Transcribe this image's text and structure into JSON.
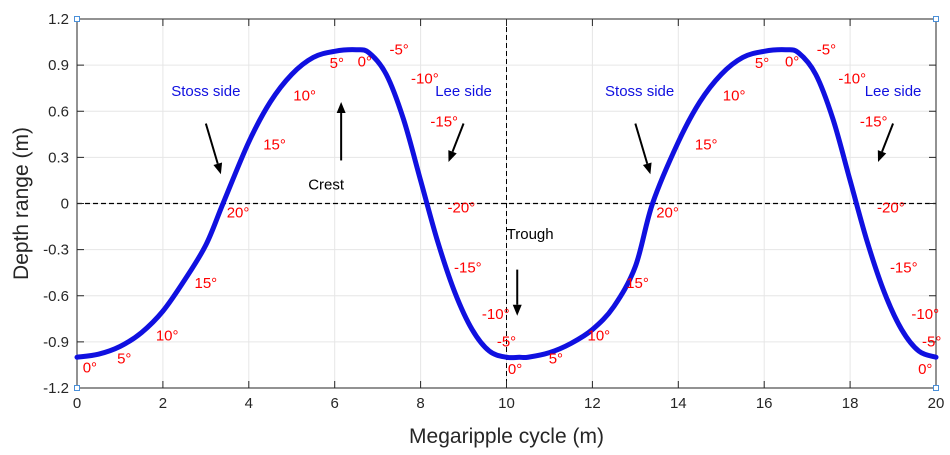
{
  "chart_data": {
    "type": "line",
    "xlabel": "Megaripple cycle (m)",
    "ylabel": "Depth range (m)",
    "xlim": [
      0,
      20
    ],
    "ylim": [
      -1.2,
      1.2
    ],
    "x_ticks": [
      "0",
      "2",
      "4",
      "6",
      "8",
      "10",
      "12",
      "14",
      "16",
      "18",
      "20"
    ],
    "y_ticks": [
      "-1.2",
      "-0.9",
      "-0.6",
      "-0.3",
      "0",
      "0.3",
      "0.6",
      "0.9",
      "1.2"
    ],
    "grid": true,
    "series": [
      {
        "color": "#1010e0",
        "x": [
          0,
          0.5,
          1,
          1.5,
          2,
          2.5,
          3,
          3.4,
          4,
          4.5,
          5,
          5.5,
          6,
          6.5,
          6.8,
          7.2,
          7.6,
          8.0,
          8.4,
          8.8,
          9.2,
          9.6,
          10.0,
          10.3,
          10.5,
          11,
          11.5,
          12,
          12.5,
          13,
          13.4,
          14,
          14.5,
          15,
          15.5,
          16,
          16.5,
          16.8,
          17.2,
          17.6,
          18.0,
          18.4,
          18.8,
          19.2,
          19.6,
          20.0
        ],
        "y": [
          -1.0,
          -0.98,
          -0.93,
          -0.84,
          -0.7,
          -0.5,
          -0.27,
          0.0,
          0.4,
          0.66,
          0.84,
          0.95,
          0.99,
          1.0,
          0.98,
          0.84,
          0.55,
          0.15,
          -0.25,
          -0.58,
          -0.82,
          -0.96,
          -1.0,
          -1.0,
          -1.0,
          -0.97,
          -0.91,
          -0.82,
          -0.67,
          -0.41,
          0.0,
          0.4,
          0.66,
          0.84,
          0.95,
          0.99,
          1.0,
          0.98,
          0.84,
          0.55,
          0.15,
          -0.25,
          -0.58,
          -0.82,
          -0.96,
          -1.0
        ]
      }
    ],
    "reference_lines": {
      "horizontal_y": 0,
      "vertical_x": 10,
      "color": "#000000",
      "style": "dashed"
    },
    "annotations": [
      {
        "text": "Stoss side",
        "x": 3.0,
        "y": 0.7,
        "color": "#1010e0"
      },
      {
        "text": "Lee side",
        "x": 9.0,
        "y": 0.7,
        "color": "#1010e0"
      },
      {
        "text": "Stoss side",
        "x": 13.1,
        "y": 0.7,
        "color": "#1010e0"
      },
      {
        "text": "Lee side",
        "x": 19.0,
        "y": 0.7,
        "color": "#1010e0"
      },
      {
        "text": "Crest",
        "x": 5.8,
        "y": 0.09,
        "color": "#000000"
      },
      {
        "text": "Trough",
        "x": 10.55,
        "y": -0.23,
        "color": "#000000"
      }
    ],
    "arrows": [
      {
        "from": [
          3.0,
          0.52
        ],
        "to": [
          3.35,
          0.19
        ]
      },
      {
        "from": [
          9.0,
          0.52
        ],
        "to": [
          8.65,
          0.27
        ]
      },
      {
        "from": [
          13.0,
          0.52
        ],
        "to": [
          13.35,
          0.19
        ]
      },
      {
        "from": [
          19.0,
          0.52
        ],
        "to": [
          18.65,
          0.27
        ]
      },
      {
        "from": [
          6.15,
          0.28
        ],
        "to": [
          6.15,
          0.66
        ]
      },
      {
        "from": [
          10.25,
          -0.43
        ],
        "to": [
          10.25,
          -0.73
        ]
      }
    ],
    "angle_labels": {
      "color": "#ff0000",
      "items": [
        {
          "text": "0°",
          "x": 0.3,
          "y": -1.1
        },
        {
          "text": "5°",
          "x": 1.1,
          "y": -1.04
        },
        {
          "text": "10°",
          "x": 2.1,
          "y": -0.89
        },
        {
          "text": "15°",
          "x": 3.0,
          "y": -0.55
        },
        {
          "text": "20°",
          "x": 3.75,
          "y": -0.09
        },
        {
          "text": "15°",
          "x": 4.6,
          "y": 0.35
        },
        {
          "text": "10°",
          "x": 5.3,
          "y": 0.67
        },
        {
          "text": "5°",
          "x": 6.05,
          "y": 0.88
        },
        {
          "text": "0°",
          "x": 6.7,
          "y": 0.89
        },
        {
          "text": "-5°",
          "x": 7.5,
          "y": 0.97
        },
        {
          "text": "-10°",
          "x": 8.1,
          "y": 0.78
        },
        {
          "text": "-15°",
          "x": 8.55,
          "y": 0.5
        },
        {
          "text": "-20°",
          "x": 8.95,
          "y": -0.06
        },
        {
          "text": "-15°",
          "x": 9.1,
          "y": -0.45
        },
        {
          "text": "-10°",
          "x": 9.75,
          "y": -0.75
        },
        {
          "text": "-5°",
          "x": 10.0,
          "y": -0.93
        },
        {
          "text": "0°",
          "x": 10.2,
          "y": -1.11
        },
        {
          "text": "5°",
          "x": 11.15,
          "y": -1.04
        },
        {
          "text": "10°",
          "x": 12.15,
          "y": -0.89
        },
        {
          "text": "15°",
          "x": 13.05,
          "y": -0.55
        },
        {
          "text": "20°",
          "x": 13.75,
          "y": -0.09
        },
        {
          "text": "15°",
          "x": 14.65,
          "y": 0.35
        },
        {
          "text": "10°",
          "x": 15.3,
          "y": 0.67
        },
        {
          "text": "5°",
          "x": 15.95,
          "y": 0.88
        },
        {
          "text": "0°",
          "x": 16.65,
          "y": 0.89
        },
        {
          "text": "-5°",
          "x": 17.45,
          "y": 0.97
        },
        {
          "text": "-10°",
          "x": 18.05,
          "y": 0.78
        },
        {
          "text": "-15°",
          "x": 18.55,
          "y": 0.5
        },
        {
          "text": "-20°",
          "x": 18.95,
          "y": -0.06
        },
        {
          "text": "-15°",
          "x": 19.25,
          "y": -0.45
        },
        {
          "text": "-10°",
          "x": 19.75,
          "y": -0.75
        },
        {
          "text": "-5°",
          "x": 19.9,
          "y": -0.93
        },
        {
          "text": "0°",
          "x": 19.75,
          "y": -1.11
        }
      ]
    }
  }
}
